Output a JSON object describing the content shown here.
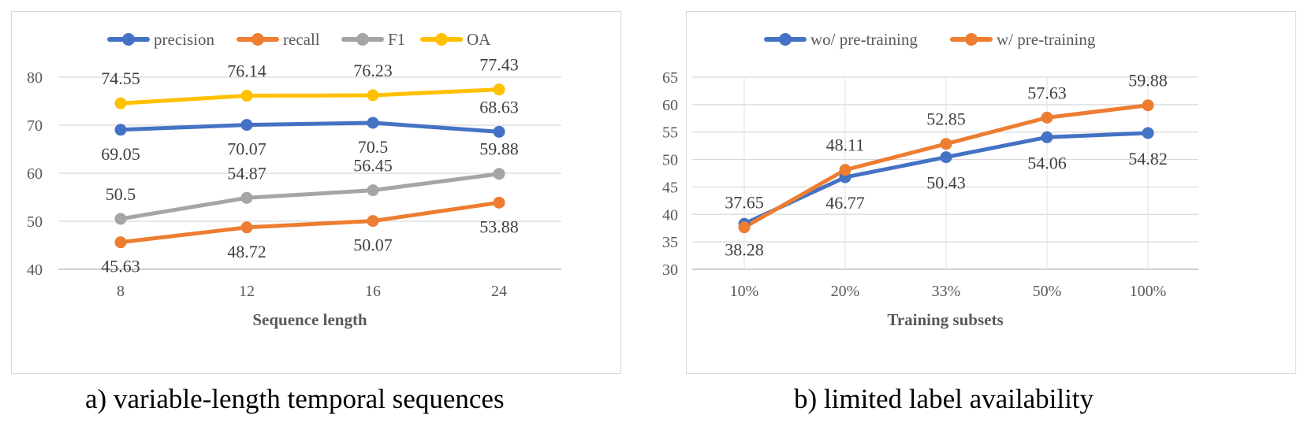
{
  "chart_data": [
    {
      "type": "line",
      "title": "",
      "caption": "a) variable-length temporal sequences",
      "xlabel": "Sequence length",
      "ylabel": "",
      "categories": [
        "8",
        "12",
        "16",
        "24"
      ],
      "ylim": [
        40,
        80
      ],
      "yticks": [
        "40",
        "50",
        "60",
        "70",
        "80"
      ],
      "grid": true,
      "legend_position": "top",
      "series": [
        {
          "name": "precision",
          "color": "#4472c4",
          "values": [
            69.05,
            70.07,
            70.5,
            68.63
          ],
          "labels": [
            "69.05",
            "70.07",
            "70.5",
            "68.63"
          ],
          "label_pos": [
            "below",
            "below",
            "below",
            "above"
          ]
        },
        {
          "name": "recall",
          "color": "#ed7d31",
          "values": [
            45.63,
            48.72,
            50.07,
            53.88
          ],
          "labels": [
            "45.63",
            "48.72",
            "50.07",
            "53.88"
          ],
          "label_pos": [
            "below",
            "below",
            "below",
            "below"
          ]
        },
        {
          "name": "F1",
          "color": "#a5a5a5",
          "values": [
            50.5,
            54.87,
            56.45,
            59.88
          ],
          "labels": [
            "50.5",
            "54.87",
            "56.45",
            "59.88"
          ],
          "label_pos": [
            "above",
            "above",
            "above",
            "above"
          ]
        },
        {
          "name": "OA",
          "color": "#ffc000",
          "values": [
            74.55,
            76.14,
            76.23,
            77.43
          ],
          "labels": [
            "74.55",
            "76.14",
            "76.23",
            "77.43"
          ],
          "label_pos": [
            "above",
            "above",
            "above",
            "above"
          ]
        }
      ]
    },
    {
      "type": "line",
      "title": "",
      "caption": "b) limited label availability",
      "xlabel": "Training subsets",
      "ylabel": "",
      "categories": [
        "10%",
        "20%",
        "33%",
        "50%",
        "100%"
      ],
      "ylim": [
        30,
        65
      ],
      "yticks": [
        "30",
        "35",
        "40",
        "45",
        "50",
        "55",
        "60",
        "65"
      ],
      "grid": true,
      "legend_position": "top",
      "series": [
        {
          "name": "wo/ pre-training",
          "color": "#4472c4",
          "values": [
            38.28,
            46.77,
            50.43,
            54.06,
            54.82
          ],
          "labels": [
            "38.28",
            "46.77",
            "50.43",
            "54.06",
            "54.82"
          ],
          "label_pos": [
            "below",
            "below",
            "below",
            "below",
            "below"
          ]
        },
        {
          "name": "w/ pre-training",
          "color": "#ed7d31",
          "values": [
            37.65,
            48.11,
            52.85,
            57.63,
            59.88
          ],
          "labels": [
            "37.65",
            "48.11",
            "52.85",
            "57.63",
            "59.88"
          ],
          "label_pos": [
            "above",
            "above",
            "above",
            "above",
            "above"
          ]
        }
      ]
    }
  ]
}
